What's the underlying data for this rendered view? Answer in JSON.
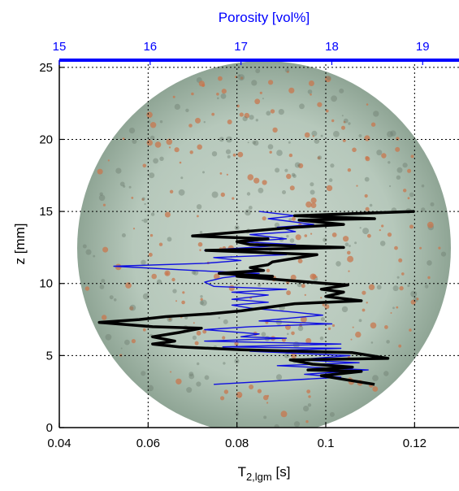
{
  "chart_data": {
    "type": "line",
    "colors": {
      "series_tlgm": "#000000",
      "series_porosity": "#1010e0",
      "top_axis": "#0000ff",
      "grid": "#000000"
    },
    "background": "core-sample cross-section image (circular rock slice, greenish-grey with orange-red speckles)",
    "grid": true,
    "x_bottom": {
      "label_base": "T",
      "label_sub": "2,lgm",
      "label_unit": " [s]",
      "range": [
        0.04,
        0.13
      ],
      "ticks": [
        0.04,
        0.06,
        0.08,
        0.1,
        0.12
      ],
      "tick_labels": [
        "0.04",
        "0.06",
        "0.08",
        "0.1",
        "0.12"
      ]
    },
    "x_top": {
      "label": "Porosity [vol%]",
      "range": [
        15,
        19.4
      ],
      "ticks": [
        15,
        16,
        17,
        18,
        19
      ],
      "tick_labels": [
        "15",
        "16",
        "17",
        "18",
        "19"
      ]
    },
    "y": {
      "label": "z [mm]",
      "range": [
        0,
        25.5
      ],
      "ticks": [
        0,
        5,
        10,
        15,
        20,
        25
      ],
      "tick_labels": [
        "0",
        "5",
        "10",
        "15",
        "20",
        "25"
      ]
    },
    "series": [
      {
        "axis": "bottom",
        "width": 3.5,
        "points": [
          [
            0.12,
            15.0
          ],
          [
            0.093,
            14.7
          ],
          [
            0.111,
            14.5
          ],
          [
            0.094,
            14.4
          ],
          [
            0.104,
            14.1
          ],
          [
            0.093,
            13.9
          ],
          [
            0.07,
            13.3
          ],
          [
            0.087,
            13.1
          ],
          [
            0.08,
            12.9
          ],
          [
            0.083,
            12.7
          ],
          [
            0.104,
            12.5
          ],
          [
            0.073,
            12.3
          ],
          [
            0.098,
            12.0
          ],
          [
            0.088,
            11.5
          ],
          [
            0.087,
            11.3
          ],
          [
            0.083,
            11.1
          ],
          [
            0.086,
            10.9
          ],
          [
            0.076,
            10.7
          ],
          [
            0.088,
            10.5
          ],
          [
            0.08,
            10.5
          ],
          [
            0.1,
            10.0
          ],
          [
            0.105,
            9.9
          ],
          [
            0.099,
            9.6
          ],
          [
            0.104,
            9.4
          ],
          [
            0.1,
            9.1
          ],
          [
            0.108,
            8.8
          ],
          [
            0.093,
            8.6
          ],
          [
            0.081,
            8.1
          ],
          [
            0.074,
            7.9
          ],
          [
            0.064,
            7.7
          ],
          [
            0.058,
            7.5
          ],
          [
            0.049,
            7.3
          ],
          [
            0.061,
            7.0
          ],
          [
            0.072,
            6.9
          ],
          [
            0.067,
            6.6
          ],
          [
            0.061,
            6.3
          ],
          [
            0.066,
            6.0
          ],
          [
            0.061,
            5.8
          ],
          [
            0.067,
            5.6
          ],
          [
            0.081,
            5.4
          ],
          [
            0.106,
            5.2
          ],
          [
            0.114,
            4.8
          ],
          [
            0.092,
            4.7
          ],
          [
            0.097,
            4.4
          ],
          [
            0.106,
            4.2
          ],
          [
            0.096,
            4.0
          ],
          [
            0.108,
            3.9
          ],
          [
            0.099,
            3.6
          ],
          [
            0.111,
            3.0
          ]
        ]
      },
      {
        "axis": "top",
        "width": 1.4,
        "points": [
          [
            17.2,
            15.0
          ],
          [
            17.6,
            14.7
          ],
          [
            17.3,
            14.5
          ],
          [
            17.8,
            14.1
          ],
          [
            17.4,
            13.9
          ],
          [
            17.6,
            13.6
          ],
          [
            17.1,
            13.4
          ],
          [
            17.5,
            13.1
          ],
          [
            17.0,
            12.9
          ],
          [
            17.6,
            12.7
          ],
          [
            17.1,
            12.5
          ],
          [
            16.6,
            12.3
          ],
          [
            17.5,
            12.0
          ],
          [
            16.7,
            11.8
          ],
          [
            17.0,
            11.6
          ],
          [
            16.6,
            11.4
          ],
          [
            15.6,
            11.2
          ],
          [
            16.5,
            10.9
          ],
          [
            17.2,
            10.7
          ],
          [
            16.8,
            10.4
          ],
          [
            16.6,
            10.1
          ],
          [
            16.7,
            9.8
          ],
          [
            17.5,
            9.6
          ],
          [
            16.9,
            9.4
          ],
          [
            17.3,
            9.2
          ],
          [
            16.9,
            8.9
          ],
          [
            17.3,
            8.7
          ],
          [
            16.9,
            8.5
          ],
          [
            17.1,
            8.3
          ],
          [
            17.6,
            8.0
          ],
          [
            17.9,
            7.8
          ],
          [
            17.2,
            7.4
          ],
          [
            18.0,
            7.2
          ],
          [
            17.1,
            7.0
          ],
          [
            16.6,
            6.8
          ],
          [
            17.2,
            6.5
          ],
          [
            17.0,
            6.3
          ],
          [
            17.5,
            6.2
          ],
          [
            16.6,
            6.0
          ],
          [
            18.1,
            5.8
          ],
          [
            16.8,
            5.6
          ],
          [
            18.1,
            5.5
          ],
          [
            17.1,
            5.3
          ],
          [
            18.2,
            5.0
          ],
          [
            17.6,
            4.7
          ],
          [
            18.3,
            4.5
          ],
          [
            17.4,
            4.3
          ],
          [
            18.4,
            4.0
          ],
          [
            17.7,
            3.7
          ],
          [
            18.1,
            3.5
          ],
          [
            16.7,
            3.0
          ]
        ]
      }
    ]
  }
}
